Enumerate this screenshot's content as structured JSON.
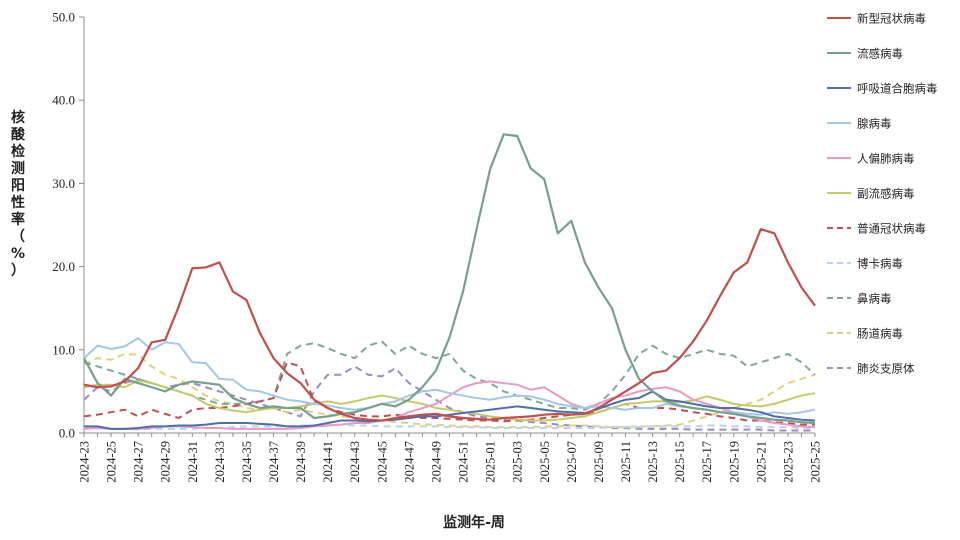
{
  "chart_data": {
    "type": "line",
    "xlabel": "监测年-周",
    "ylabel": "核酸检测阳性率（%）",
    "ylim": [
      0,
      50
    ],
    "yticks": [
      "0.0",
      "10.0",
      "20.0",
      "30.0",
      "40.0",
      "50.0"
    ],
    "grid": false,
    "legend_position": "right",
    "x": [
      "2024-23",
      "2024-24",
      "2024-25",
      "2024-26",
      "2024-27",
      "2024-28",
      "2024-29",
      "2024-30",
      "2024-31",
      "2024-32",
      "2024-33",
      "2024-34",
      "2024-35",
      "2024-36",
      "2024-37",
      "2024-38",
      "2024-39",
      "2024-40",
      "2024-41",
      "2024-42",
      "2024-43",
      "2024-44",
      "2024-45",
      "2024-46",
      "2024-47",
      "2024-48",
      "2024-49",
      "2024-50",
      "2024-51",
      "2024-52",
      "2025-01",
      "2025-02",
      "2025-03",
      "2025-04",
      "2025-05",
      "2025-06",
      "2025-07",
      "2025-08",
      "2025-09",
      "2025-10",
      "2025-11",
      "2025-12",
      "2025-13",
      "2025-14",
      "2025-15",
      "2025-16",
      "2025-17",
      "2025-18",
      "2025-19",
      "2025-20",
      "2025-21",
      "2025-22",
      "2025-23",
      "2025-24",
      "2025-25"
    ],
    "xtick_labels": [
      "2024-23",
      "2024-25",
      "2024-27",
      "2024-29",
      "2024-31",
      "2024-33",
      "2024-35",
      "2024-37",
      "2024-39",
      "2024-41",
      "2024-43",
      "2024-45",
      "2024-47",
      "2024-49",
      "2024-51",
      "2025-01",
      "2025-03",
      "2025-05",
      "2025-07",
      "2025-09",
      "2025-11",
      "2025-13",
      "2025-15",
      "2025-17",
      "2025-19",
      "2025-21",
      "2025-23",
      "2025-25"
    ],
    "series": [
      {
        "name": "新型冠状病毒",
        "color": "#c0504d",
        "dash": "solid",
        "values": [
          5.8,
          5.5,
          5.6,
          6.2,
          7.8,
          10.9,
          11.2,
          15.2,
          19.8,
          19.9,
          20.5,
          17.0,
          16.0,
          12.0,
          9.0,
          7.2,
          6.0,
          4.0,
          3.0,
          2.3,
          1.8,
          1.6,
          1.5,
          1.8,
          2.0,
          2.2,
          2.3,
          2.0,
          1.8,
          1.7,
          1.6,
          1.8,
          1.9,
          2.0,
          2.2,
          2.3,
          2.2,
          2.3,
          3.0,
          4.0,
          5.0,
          6.0,
          7.2,
          7.5,
          9.0,
          11.0,
          13.5,
          16.5,
          19.3,
          20.5,
          24.5,
          24.0,
          20.5,
          17.5,
          15.3
        ]
      },
      {
        "name": "流感病毒",
        "color": "#77a08a",
        "dash": "solid",
        "values": [
          9.0,
          6.0,
          4.5,
          6.5,
          6.0,
          5.5,
          5.0,
          5.8,
          6.2,
          6.0,
          5.8,
          4.2,
          3.5,
          3.0,
          3.2,
          3.0,
          3.0,
          1.8,
          2.0,
          2.3,
          2.5,
          3.0,
          3.5,
          3.2,
          4.0,
          5.5,
          7.5,
          11.5,
          17.0,
          24.5,
          31.7,
          35.9,
          35.7,
          31.8,
          30.5,
          24.0,
          25.5,
          20.5,
          17.5,
          15.0,
          10.0,
          6.5,
          5.0,
          3.8,
          3.3,
          3.0,
          2.8,
          2.5,
          2.3,
          2.0,
          1.8,
          1.6,
          1.5,
          1.3,
          1.2
        ]
      },
      {
        "name": "呼吸道合胞病毒",
        "color": "#4f6fa8",
        "dash": "solid",
        "values": [
          0.8,
          0.8,
          0.5,
          0.5,
          0.6,
          0.8,
          0.8,
          0.9,
          0.9,
          1.0,
          1.2,
          1.2,
          1.2,
          1.1,
          1.0,
          0.8,
          0.8,
          0.9,
          1.2,
          1.5,
          1.5,
          1.4,
          1.5,
          1.6,
          1.8,
          2.0,
          2.0,
          2.2,
          2.4,
          2.6,
          2.8,
          3.0,
          3.2,
          3.0,
          2.8,
          2.6,
          2.5,
          2.4,
          2.9,
          3.5,
          4.0,
          4.2,
          5.0,
          4.0,
          3.8,
          3.5,
          3.2,
          3.0,
          3.0,
          2.8,
          2.5,
          2.0,
          1.8,
          1.6,
          1.5
        ]
      },
      {
        "name": "腺病毒",
        "color": "#a6c6e6",
        "dash": "solid",
        "values": [
          9.0,
          10.5,
          10.1,
          10.4,
          11.4,
          10.0,
          10.9,
          10.7,
          8.5,
          8.4,
          6.5,
          6.4,
          5.2,
          5.0,
          4.5,
          4.0,
          3.8,
          3.5,
          3.3,
          3.0,
          2.8,
          3.0,
          3.5,
          3.8,
          4.5,
          5.0,
          5.2,
          4.8,
          4.5,
          4.2,
          4.0,
          4.3,
          4.5,
          4.4,
          4.0,
          3.5,
          3.2,
          3.0,
          3.2,
          3.0,
          2.8,
          3.0,
          3.0,
          3.5,
          3.2,
          3.0,
          2.8,
          2.5,
          2.5,
          2.3,
          2.2,
          2.5,
          2.3,
          2.5,
          2.8
        ]
      },
      {
        "name": "人偏肺病毒",
        "color": "#e89ac6",
        "dash": "solid",
        "values": [
          0.5,
          0.6,
          0.5,
          0.5,
          0.5,
          0.6,
          0.8,
          0.8,
          0.7,
          0.6,
          0.6,
          0.5,
          0.5,
          0.5,
          0.5,
          0.5,
          0.6,
          0.8,
          0.9,
          1.0,
          1.2,
          1.2,
          1.5,
          1.8,
          2.5,
          3.0,
          3.5,
          4.5,
          5.5,
          6.0,
          6.2,
          6.0,
          5.8,
          5.2,
          5.5,
          4.5,
          3.5,
          3.0,
          3.5,
          4.2,
          4.5,
          5.0,
          5.3,
          5.5,
          5.0,
          4.0,
          3.5,
          3.0,
          2.5,
          2.0,
          1.5,
          1.2,
          1.0,
          0.8,
          0.7
        ]
      },
      {
        "name": "副流感病毒",
        "color": "#c4c96a",
        "dash": "solid",
        "values": [
          5.5,
          5.8,
          5.8,
          5.5,
          6.3,
          6.0,
          5.5,
          5.0,
          4.5,
          3.5,
          3.0,
          2.7,
          2.5,
          2.8,
          3.0,
          3.0,
          3.2,
          3.5,
          3.8,
          3.5,
          3.8,
          4.2,
          4.5,
          4.2,
          3.8,
          3.5,
          3.0,
          2.8,
          2.5,
          2.3,
          2.0,
          1.8,
          1.6,
          1.5,
          1.5,
          1.6,
          1.8,
          2.0,
          2.5,
          3.0,
          3.5,
          3.6,
          3.8,
          3.8,
          3.7,
          3.9,
          4.4,
          4.0,
          3.5,
          3.3,
          3.2,
          3.5,
          4.0,
          4.5,
          4.8
        ]
      },
      {
        "name": "普通冠状病毒",
        "color": "#c0504d",
        "dash": "dash",
        "values": [
          2.0,
          2.2,
          2.5,
          2.8,
          2.0,
          2.8,
          2.3,
          1.8,
          2.8,
          3.0,
          3.0,
          3.2,
          3.5,
          3.8,
          4.2,
          8.5,
          8.0,
          3.8,
          3.0,
          2.5,
          2.2,
          2.0,
          2.0,
          2.2,
          2.0,
          1.8,
          1.8,
          1.7,
          1.6,
          1.5,
          1.5,
          1.4,
          1.5,
          1.6,
          1.8,
          2.0,
          2.2,
          2.3,
          2.5,
          3.0,
          3.5,
          3.0,
          3.0,
          3.0,
          2.8,
          2.5,
          2.3,
          2.0,
          1.8,
          1.5,
          1.5,
          1.3,
          1.2,
          1.0,
          1.0
        ]
      },
      {
        "name": "博卡病毒",
        "color": "#b8d4ee",
        "dash": "dash",
        "values": [
          0.5,
          0.6,
          0.5,
          0.5,
          0.4,
          0.5,
          0.5,
          0.5,
          0.5,
          0.6,
          0.6,
          0.7,
          0.8,
          0.8,
          0.8,
          0.8,
          0.9,
          0.9,
          1.0,
          1.0,
          0.9,
          0.9,
          0.8,
          0.8,
          0.8,
          0.8,
          0.8,
          0.7,
          0.7,
          0.7,
          0.6,
          0.6,
          0.6,
          0.6,
          0.6,
          0.6,
          0.6,
          0.6,
          0.6,
          0.7,
          0.7,
          0.7,
          0.8,
          0.8,
          0.8,
          0.8,
          0.9,
          0.9,
          0.8,
          0.8,
          0.7,
          0.7,
          0.7,
          0.6,
          0.6
        ]
      },
      {
        "name": "鼻病毒",
        "color": "#7ea896",
        "dash": "dash",
        "values": [
          8.5,
          8.0,
          7.5,
          7.0,
          6.5,
          6.0,
          5.5,
          5.0,
          4.5,
          4.0,
          3.5,
          3.5,
          3.5,
          3.8,
          4.2,
          9.5,
          10.5,
          10.8,
          10.2,
          9.5,
          9.0,
          10.5,
          11.0,
          9.5,
          10.5,
          9.5,
          9.0,
          9.5,
          7.5,
          6.5,
          6.0,
          5.0,
          4.5,
          4.0,
          3.5,
          3.0,
          3.0,
          2.8,
          3.5,
          5.0,
          7.0,
          9.5,
          10.5,
          9.5,
          9.0,
          9.5,
          10.0,
          9.5,
          9.3,
          8.0,
          8.5,
          9.0,
          9.5,
          8.5,
          7.0
        ]
      },
      {
        "name": "肠道病毒",
        "color": "#e0d080",
        "dash": "dash",
        "values": [
          8.2,
          9.0,
          8.8,
          9.5,
          9.4,
          8.0,
          7.0,
          6.5,
          5.5,
          4.5,
          3.8,
          3.5,
          3.0,
          2.8,
          3.0,
          2.5,
          2.8,
          2.5,
          2.2,
          2.0,
          1.8,
          1.5,
          1.5,
          1.3,
          1.2,
          1.0,
          1.0,
          0.9,
          0.8,
          0.8,
          0.7,
          0.7,
          0.7,
          0.7,
          0.8,
          0.8,
          0.9,
          0.9,
          0.8,
          0.7,
          0.7,
          0.8,
          0.8,
          0.9,
          1.0,
          1.5,
          2.0,
          2.5,
          3.0,
          3.5,
          4.0,
          5.0,
          6.0,
          6.5,
          7.0
        ]
      },
      {
        "name": "肺炎支原体",
        "color": "#9b8bbf",
        "dash": "dash",
        "values": [
          4.0,
          5.5,
          5.0,
          6.0,
          6.5,
          6.0,
          5.5,
          5.8,
          6.0,
          5.5,
          5.0,
          4.5,
          4.0,
          3.5,
          3.0,
          2.5,
          2.0,
          5.0,
          7.0,
          7.0,
          8.0,
          7.0,
          6.8,
          7.8,
          6.0,
          5.0,
          4.0,
          3.0,
          2.5,
          2.0,
          1.8,
          1.6,
          1.5,
          1.3,
          1.2,
          1.0,
          0.9,
          0.8,
          0.7,
          0.6,
          0.6,
          0.5,
          0.5,
          0.5,
          0.5,
          0.4,
          0.4,
          0.4,
          0.4,
          0.4,
          0.4,
          0.3,
          0.3,
          0.3,
          0.3
        ]
      }
    ]
  }
}
